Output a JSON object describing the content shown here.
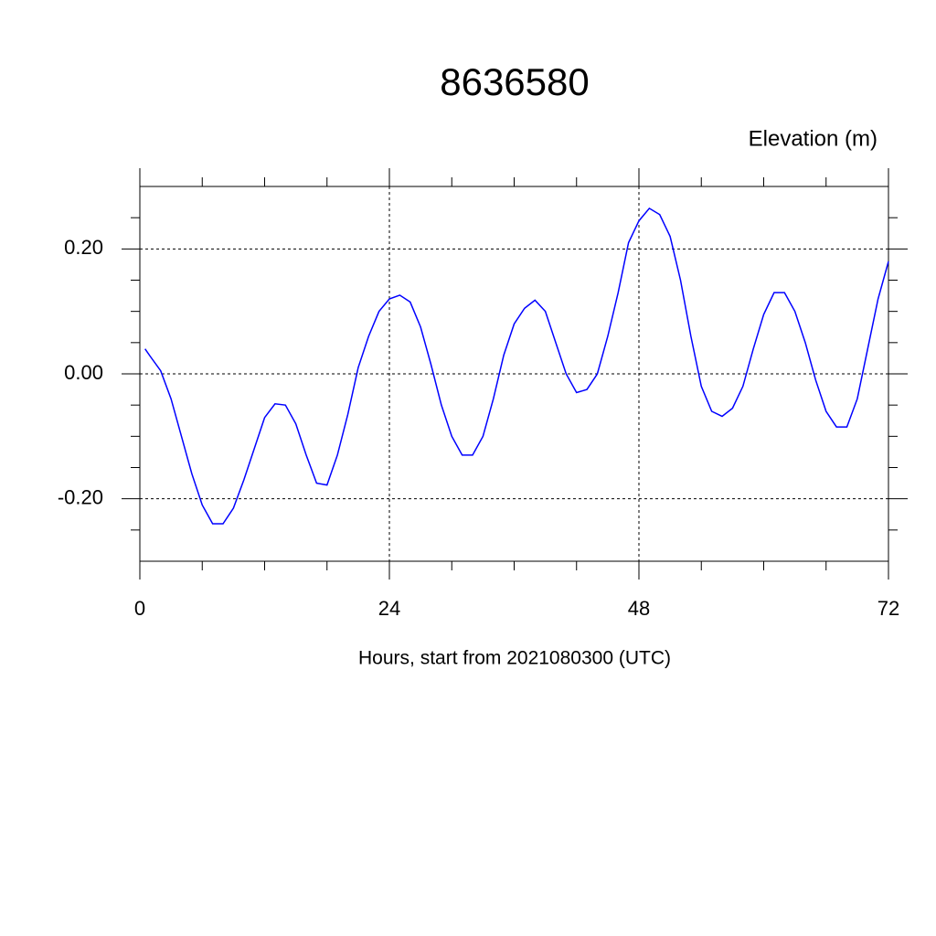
{
  "chart_data": {
    "type": "line",
    "title": "8636580",
    "ylabel": "Elevation (m)",
    "xlabel": "Hours, start from 2021080300 (UTC)",
    "x": [
      0.5,
      1,
      2,
      3,
      4,
      5,
      6,
      7,
      8,
      9,
      10,
      11,
      12,
      13,
      14,
      15,
      16,
      17,
      18,
      19,
      20,
      21,
      22,
      23,
      24,
      25,
      26,
      27,
      28,
      29,
      30,
      31,
      32,
      33,
      34,
      35,
      36,
      37,
      38,
      39,
      40,
      41,
      42,
      43,
      44,
      45,
      46,
      47,
      48,
      49,
      50,
      51,
      52,
      53,
      54,
      55,
      56,
      57,
      58,
      59,
      60,
      61,
      62,
      63,
      64,
      65,
      66,
      67,
      68,
      69,
      70,
      71,
      72
    ],
    "series": [
      {
        "color": "#0000ff",
        "values": [
          0.04,
          0.028,
          0.005,
          -0.04,
          -0.1,
          -0.16,
          -0.21,
          -0.24,
          -0.24,
          -0.215,
          -0.17,
          -0.12,
          -0.07,
          -0.048,
          -0.05,
          -0.08,
          -0.13,
          -0.175,
          -0.178,
          -0.13,
          -0.065,
          0.01,
          0.06,
          0.1,
          0.12,
          0.126,
          0.115,
          0.075,
          0.015,
          -0.05,
          -0.1,
          -0.13,
          -0.13,
          -0.1,
          -0.04,
          0.03,
          0.08,
          0.105,
          0.118,
          0.1,
          0.05,
          0.0,
          -0.03,
          -0.025,
          0.0,
          0.06,
          0.13,
          0.21,
          0.245,
          0.265,
          0.255,
          0.22,
          0.15,
          0.06,
          -0.02,
          -0.06,
          -0.068,
          -0.055,
          -0.02,
          0.04,
          0.095,
          0.13,
          0.13,
          0.1,
          0.05,
          -0.01,
          -0.06,
          -0.085,
          -0.085,
          -0.04,
          0.04,
          0.12,
          0.18
        ]
      }
    ],
    "xlim": [
      0,
      72
    ],
    "xticks": [
      0,
      24,
      48,
      72
    ],
    "xminorticks": [
      6,
      12,
      18,
      30,
      36,
      42,
      54,
      60,
      66
    ],
    "ylim": [
      -0.3,
      0.3
    ],
    "yticks": [
      {
        "value": -0.2,
        "label": "-0.20"
      },
      {
        "value": 0,
        "label": "0.00"
      },
      {
        "value": 0.2,
        "label": "0.20"
      }
    ],
    "yminorticks": [
      -0.25,
      -0.15,
      -0.1,
      -0.05,
      0.05,
      0.1,
      0.15,
      0.25
    ],
    "grid": true
  }
}
